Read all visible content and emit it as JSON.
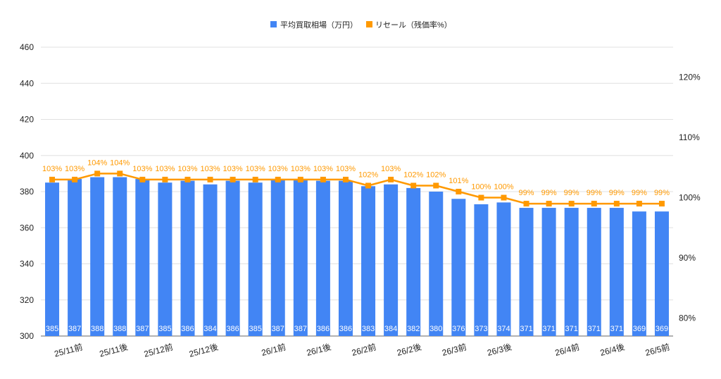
{
  "chart_data": {
    "type": "bar",
    "categories": [
      "",
      "25/11前",
      "",
      "25/11後",
      "",
      "25/12前",
      "",
      "25/12後",
      "",
      "",
      "26/1前",
      "",
      "26/1後",
      "",
      "26/2前",
      "",
      "26/2後",
      "",
      "26/3前",
      "",
      "26/3後",
      "",
      "",
      "26/4前",
      "",
      "26/4後",
      "",
      "26/5前"
    ],
    "series": [
      {
        "name": "平均買取相場（万円）",
        "type": "bar",
        "axis": "left",
        "color": "#4285f4",
        "label_color": "#ffffff",
        "values": [
          385,
          387,
          388,
          388,
          387,
          385,
          386,
          384,
          386,
          385,
          387,
          387,
          386,
          386,
          383,
          384,
          382,
          380,
          376,
          373,
          374,
          371,
          371,
          371,
          371,
          371,
          369,
          369
        ]
      },
      {
        "name": "リセール（残価率%）",
        "type": "line",
        "axis": "right",
        "color": "#ff9900",
        "label_suffix": "%",
        "values": [
          103,
          103,
          104,
          104,
          103,
          103,
          103,
          103,
          103,
          103,
          103,
          103,
          103,
          103,
          102,
          103,
          102,
          102,
          101,
          100,
          100,
          99,
          99,
          99,
          99,
          99,
          99,
          99
        ]
      }
    ],
    "ylim": [
      300,
      460
    ],
    "yticks": [
      300,
      320,
      340,
      360,
      380,
      400,
      420,
      440,
      460
    ],
    "y2lim": [
      77,
      125
    ],
    "y2ticks": [
      80,
      90,
      100,
      110,
      120
    ],
    "y2_tick_suffix": "%",
    "grid": true,
    "legend": "top"
  }
}
